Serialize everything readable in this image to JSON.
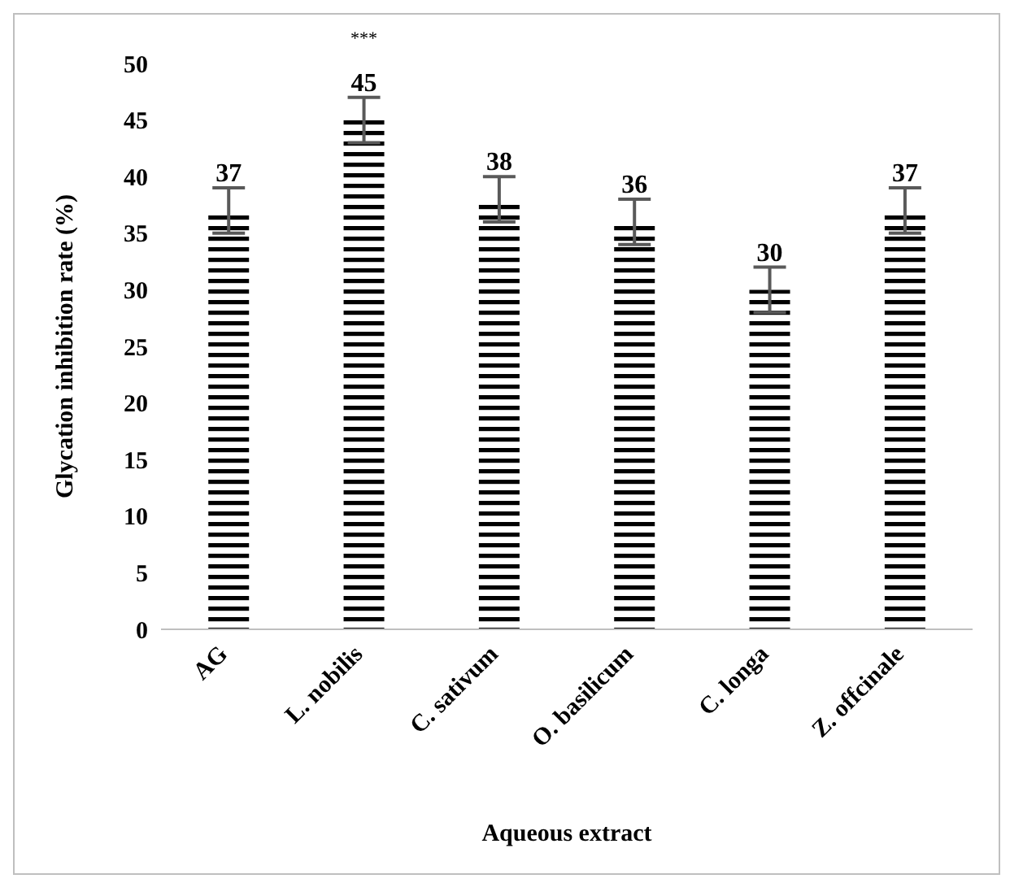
{
  "chart_data": {
    "type": "bar",
    "xlabel": "Aqueous extract",
    "ylabel": "Glycation inhibition rate (%)",
    "categories": [
      "AG",
      "L. nobilis",
      "C. sativum",
      "O. basilicum",
      "C. longa",
      "Z. offcinale"
    ],
    "values": [
      37,
      45,
      38,
      36,
      30,
      37
    ],
    "errors": [
      2,
      2,
      2,
      2,
      2,
      2
    ],
    "color": "#000000",
    "ylim": [
      0,
      50
    ],
    "yticks": [
      0,
      5,
      10,
      15,
      20,
      25,
      30,
      35,
      40,
      45,
      50
    ],
    "data_labels": true,
    "annotations": [
      "***"
    ]
  }
}
